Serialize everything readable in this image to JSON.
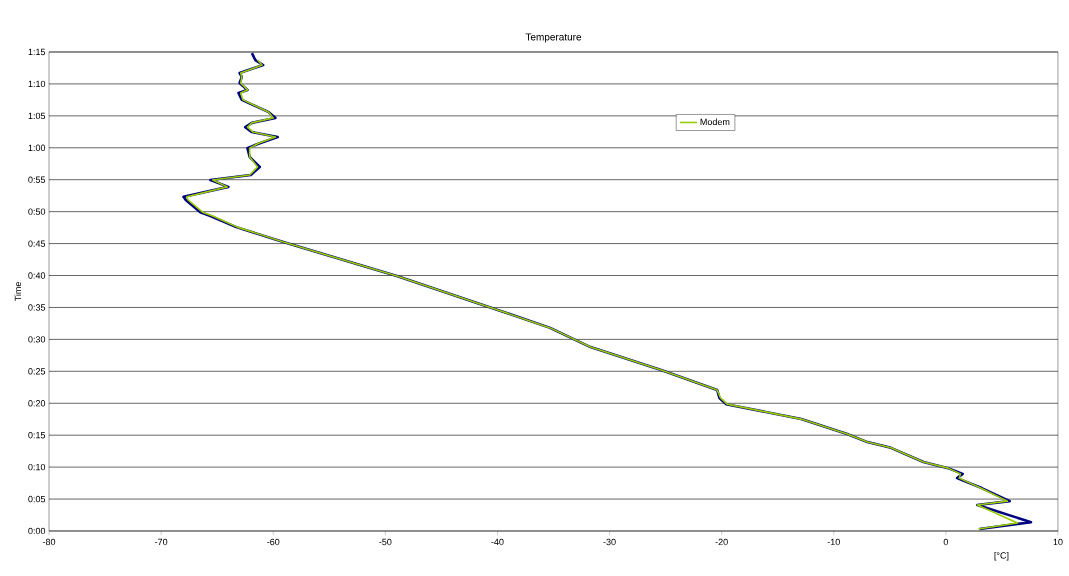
{
  "chart_data": {
    "type": "line",
    "title": "Temperature",
    "xlabel": "[°C]",
    "ylabel": "Time",
    "xlim": [
      -80,
      10
    ],
    "xticks": [
      -80,
      -70,
      -60,
      -50,
      -40,
      -30,
      -20,
      -10,
      0,
      10
    ],
    "ylim": [
      0,
      1.25
    ],
    "yticks": [
      {
        "value": 0,
        "label": "0:00"
      },
      {
        "value": 0.0833,
        "label": "0:05"
      },
      {
        "value": 0.1667,
        "label": "0:10"
      },
      {
        "value": 0.25,
        "label": "0:15"
      },
      {
        "value": 0.3333,
        "label": "0:20"
      },
      {
        "value": 0.4167,
        "label": "0:25"
      },
      {
        "value": 0.5,
        "label": "0:30"
      },
      {
        "value": 0.5833,
        "label": "0:35"
      },
      {
        "value": 0.6667,
        "label": "0:40"
      },
      {
        "value": 0.75,
        "label": "0:45"
      },
      {
        "value": 0.8333,
        "label": "0:50"
      },
      {
        "value": 0.9167,
        "label": "0:55"
      },
      {
        "value": 1,
        "label": "1:00"
      },
      {
        "value": 1.0833,
        "label": "1:05"
      },
      {
        "value": 1.1667,
        "label": "1:10"
      },
      {
        "value": 1.25,
        "label": "1:15"
      }
    ],
    "grid": "y",
    "legend": "top right",
    "marker": "none",
    "line_style": "solid",
    "series": [
      {
        "color": "#000080",
        "x": [
          3.0,
          7.6,
          2.8,
          5.7,
          3.2,
          1.0,
          1.5,
          0.2,
          -2.0,
          -4.9,
          -7.0,
          -8.8,
          -12.9,
          -19.6,
          -20.2,
          -20.4,
          -25.4,
          -31.7,
          -35.3,
          -41.3,
          -48.9,
          -59.1,
          -63.3,
          -65.6,
          -66.5,
          -67.8,
          -68.0,
          -64.0,
          -65.6,
          -62.0,
          -61.2,
          -62.1,
          -62.3,
          -61.2,
          -59.6,
          -61.9,
          -62.5,
          -61.9,
          -59.8,
          -60.4,
          -62.8,
          -63.1,
          -62.3,
          -63.0,
          -62.8,
          -63.0,
          -60.9,
          -61.6,
          -61.9
        ],
        "values": [
          0.005,
          0.023,
          0.068,
          0.078,
          0.112,
          0.138,
          0.149,
          0.164,
          0.18,
          0.217,
          0.232,
          0.253,
          0.292,
          0.331,
          0.347,
          0.368,
          0.42,
          0.48,
          0.53,
          0.59,
          0.665,
          0.754,
          0.793,
          0.822,
          0.832,
          0.864,
          0.872,
          0.898,
          0.916,
          0.929,
          0.95,
          0.976,
          0.999,
          1.012,
          1.028,
          1.041,
          1.054,
          1.065,
          1.078,
          1.093,
          1.125,
          1.143,
          1.151,
          1.169,
          1.185,
          1.195,
          1.216,
          1.229,
          1.247
        ]
      },
      {
        "name": "Modem",
        "color": "#99cc00",
        "x": [
          2.9,
          6.4,
          2.8,
          5.5,
          3.1,
          1.2,
          1.3,
          0.2,
          -2.0,
          -4.9,
          -7.0,
          -8.8,
          -12.9,
          -19.5,
          -20.1,
          -20.4,
          -25.4,
          -31.7,
          -35.3,
          -41.3,
          -48.9,
          -59.1,
          -63.2,
          -65.4,
          -66.3,
          -67.6,
          -67.7,
          -64.1,
          -65.4,
          -62.1,
          -61.4,
          -62.1,
          -62.1,
          -61.3,
          -59.8,
          -61.8,
          -62.3,
          -61.9,
          -60.0,
          -60.4,
          -62.7,
          -62.9,
          -62.3,
          -62.9,
          -62.8,
          -62.9,
          -61.0,
          -61.4
        ],
        "values": [
          0.005,
          0.021,
          0.068,
          0.078,
          0.112,
          0.138,
          0.149,
          0.164,
          0.18,
          0.217,
          0.232,
          0.253,
          0.292,
          0.331,
          0.347,
          0.368,
          0.42,
          0.48,
          0.53,
          0.59,
          0.665,
          0.754,
          0.793,
          0.822,
          0.832,
          0.864,
          0.872,
          0.898,
          0.916,
          0.929,
          0.95,
          0.976,
          0.999,
          1.012,
          1.028,
          1.041,
          1.054,
          1.065,
          1.078,
          1.093,
          1.125,
          1.143,
          1.151,
          1.169,
          1.185,
          1.195,
          1.216,
          1.229
        ]
      }
    ]
  }
}
